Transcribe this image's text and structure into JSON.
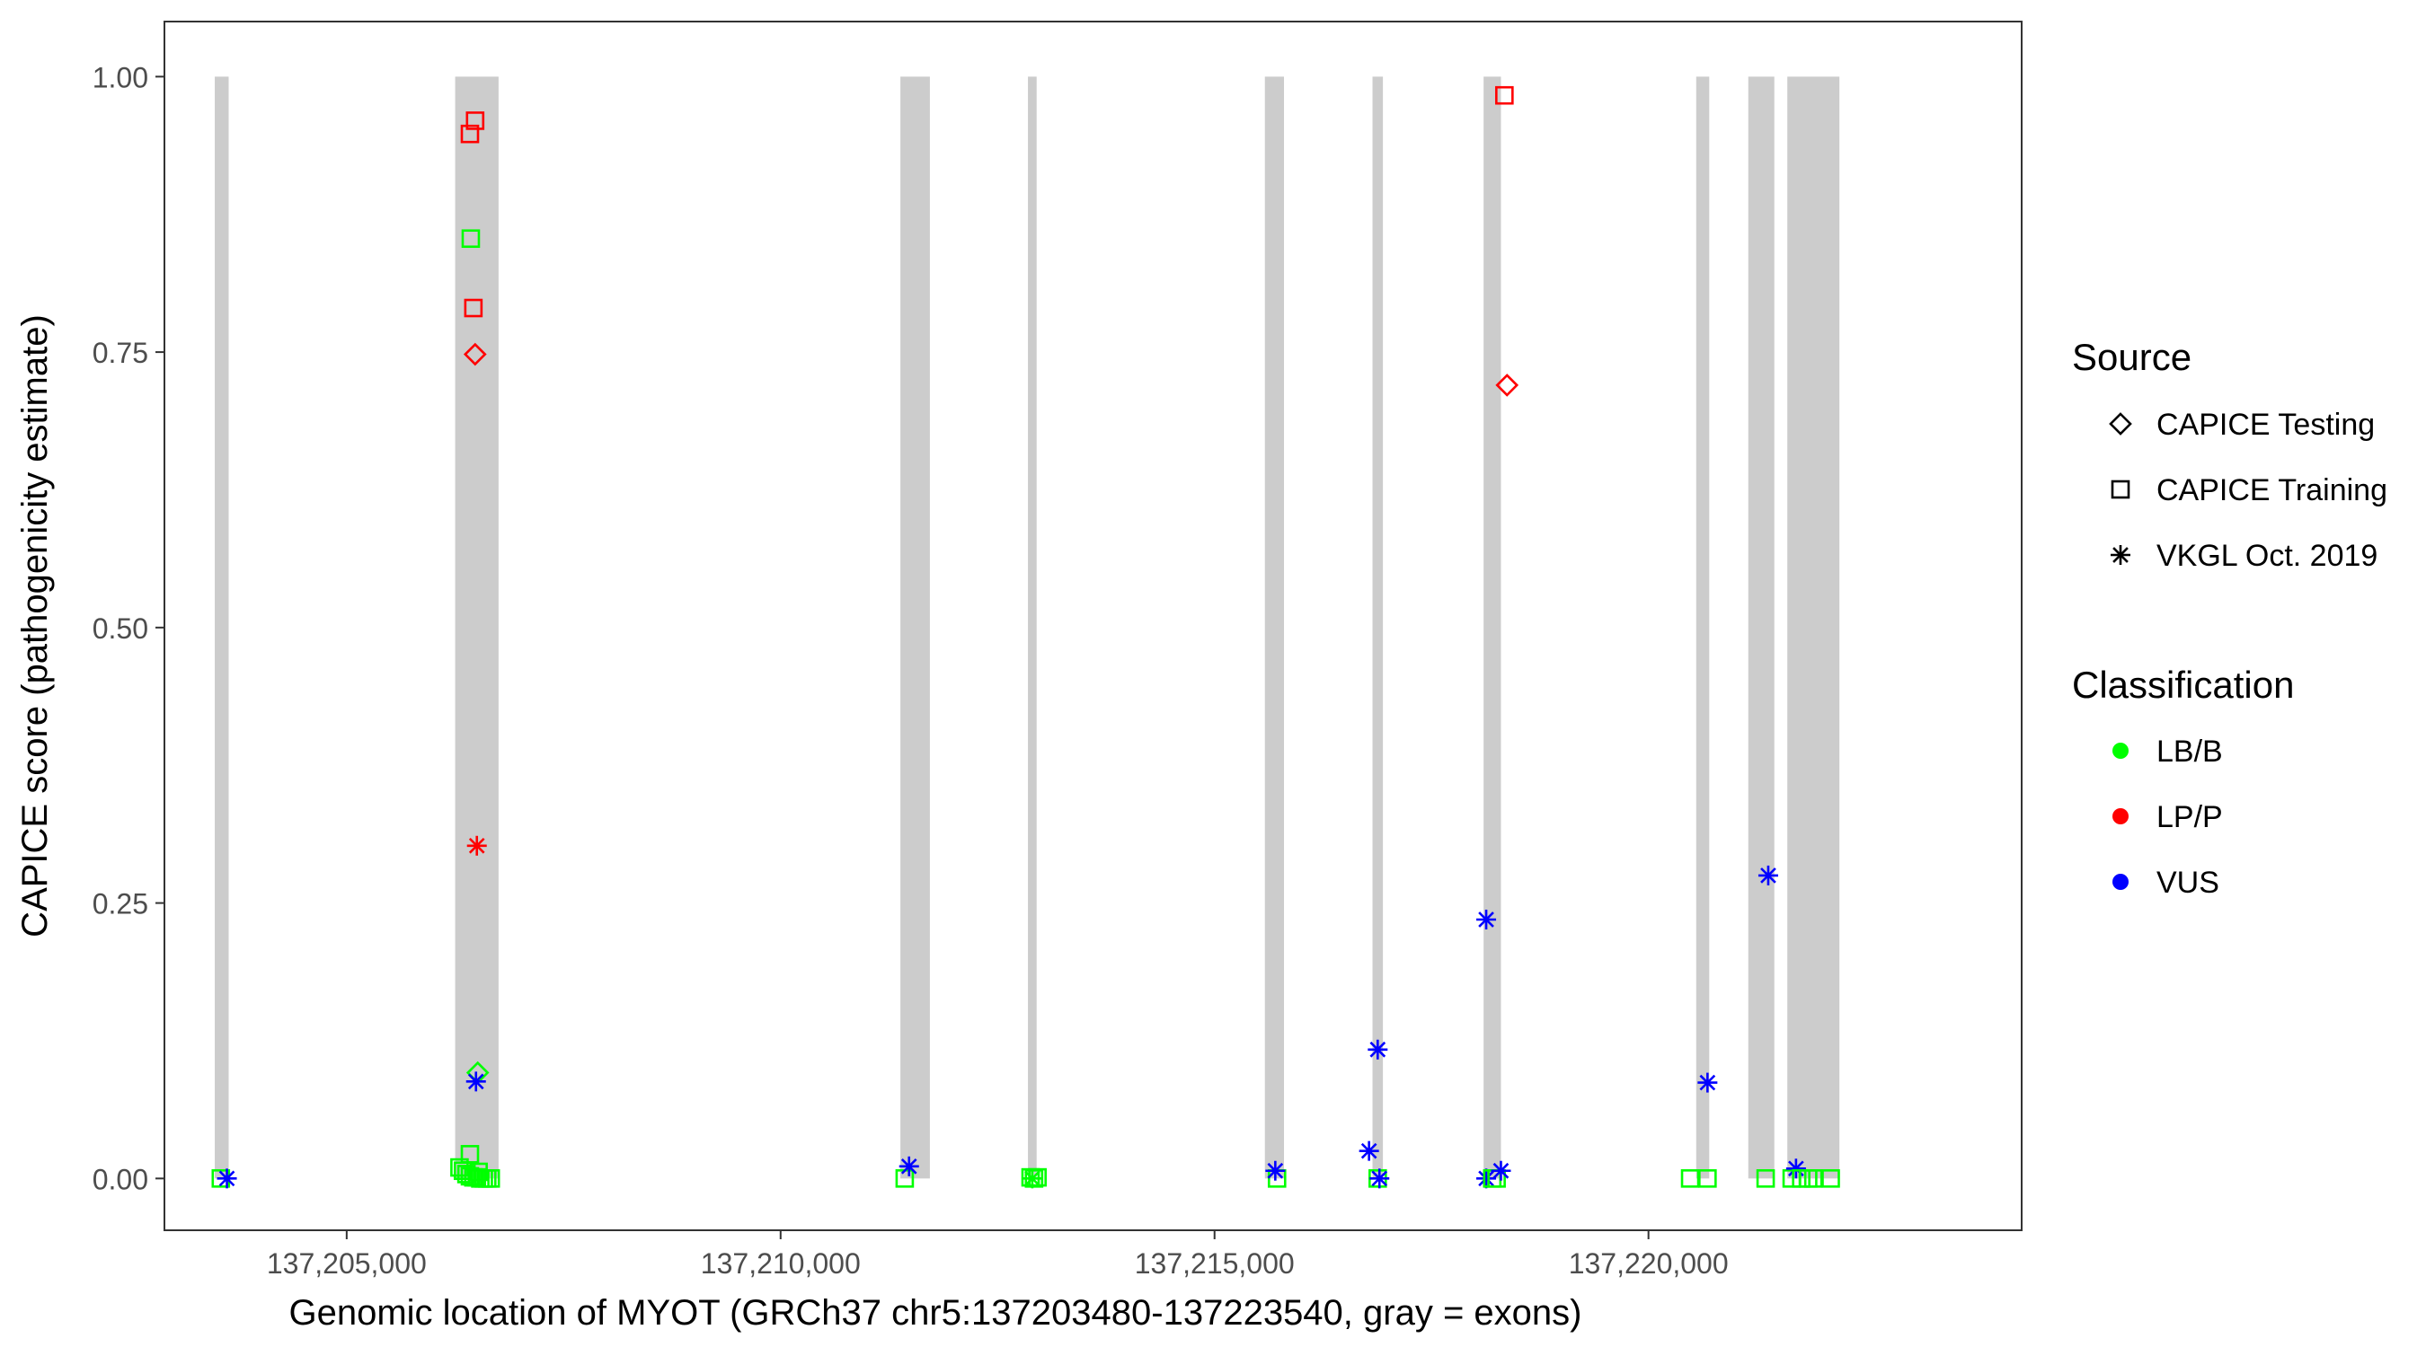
{
  "chart_data": {
    "type": "scatter",
    "title": "",
    "xlabel": "Genomic location of MYOT (GRCh37 chr5:137203480-137223540, gray = exons)",
    "ylabel": "CAPICE score (pathogenicity estimate)",
    "xlim": [
      137202900,
      137224300
    ],
    "ylim": [
      -0.047,
      1.05
    ],
    "x_ticks": [
      137205000,
      137210000,
      137215000,
      137220000
    ],
    "x_tick_labels": [
      "137,205,000",
      "137,210,000",
      "137,215,000",
      "137,220,000"
    ],
    "y_ticks": [
      0,
      0.25,
      0.5,
      0.75,
      1
    ],
    "y_tick_labels": [
      "0.00",
      "0.25",
      "0.50",
      "0.75",
      "1.00"
    ],
    "grid": false,
    "legend_position": "right",
    "exons": [
      [
        137203480,
        137203640
      ],
      [
        137206250,
        137206750
      ],
      [
        137211380,
        137211720
      ],
      [
        137212850,
        137212950
      ],
      [
        137215580,
        137215800
      ],
      [
        137216820,
        137216940
      ],
      [
        137218100,
        137218300
      ],
      [
        137220550,
        137220700
      ],
      [
        137221150,
        137221450
      ],
      [
        137221600,
        137222200
      ]
    ],
    "legend_source": {
      "title": "Source",
      "entries": [
        {
          "label": "CAPICE Testing",
          "shape": "diamond"
        },
        {
          "label": "CAPICE Training",
          "shape": "square"
        },
        {
          "label": "VKGL Oct. 2019",
          "shape": "asterisk"
        }
      ]
    },
    "legend_classification": {
      "title": "Classification",
      "entries": [
        {
          "label": "LB/B",
          "color": "#00ff00"
        },
        {
          "label": "LP/P",
          "color": "#ff0000"
        },
        {
          "label": "VUS",
          "color": "#0000ff"
        }
      ]
    },
    "colors": {
      "LB/B": "#00ff00",
      "LP/P": "#ff0000",
      "VUS": "#0000ff",
      "exon": "#cccccc"
    },
    "points": [
      {
        "x": 137203550,
        "y": 0.0,
        "source": "square",
        "class": "LB/B"
      },
      {
        "x": 137203620,
        "y": 0.0,
        "source": "asterisk",
        "class": "VUS"
      },
      {
        "x": 137206420,
        "y": 0.948,
        "source": "square",
        "class": "LP/P"
      },
      {
        "x": 137206480,
        "y": 0.96,
        "source": "square",
        "class": "LP/P"
      },
      {
        "x": 137206460,
        "y": 0.79,
        "source": "square",
        "class": "LP/P"
      },
      {
        "x": 137206480,
        "y": 0.748,
        "source": "diamond",
        "class": "LP/P"
      },
      {
        "x": 137206500,
        "y": 0.302,
        "source": "asterisk",
        "class": "LP/P"
      },
      {
        "x": 137206430,
        "y": 0.853,
        "source": "square",
        "class": "LB/B"
      },
      {
        "x": 137206510,
        "y": 0.096,
        "source": "diamond",
        "class": "LB/B"
      },
      {
        "x": 137206490,
        "y": 0.088,
        "source": "asterisk",
        "class": "VUS"
      },
      {
        "x": 137206420,
        "y": 0.022,
        "source": "square",
        "class": "LB/B"
      },
      {
        "x": 137206300,
        "y": 0.01,
        "source": "square",
        "class": "LB/B"
      },
      {
        "x": 137206340,
        "y": 0.007,
        "source": "square",
        "class": "LB/B"
      },
      {
        "x": 137206380,
        "y": 0.004,
        "source": "square",
        "class": "LB/B"
      },
      {
        "x": 137206420,
        "y": 0.002,
        "source": "square",
        "class": "LB/B"
      },
      {
        "x": 137206460,
        "y": 0.001,
        "source": "square",
        "class": "LB/B"
      },
      {
        "x": 137206500,
        "y": 0.001,
        "source": "square",
        "class": "LB/B"
      },
      {
        "x": 137206540,
        "y": 0.0,
        "source": "square",
        "class": "LB/B"
      },
      {
        "x": 137206580,
        "y": 0.0,
        "source": "square",
        "class": "LB/B"
      },
      {
        "x": 137206620,
        "y": 0.0,
        "source": "square",
        "class": "LB/B"
      },
      {
        "x": 137206660,
        "y": 0.0,
        "source": "square",
        "class": "LB/B"
      },
      {
        "x": 137206520,
        "y": 0.006,
        "source": "square",
        "class": "LB/B"
      },
      {
        "x": 137211430,
        "y": 0.0,
        "source": "square",
        "class": "LB/B"
      },
      {
        "x": 137211480,
        "y": 0.011,
        "source": "asterisk",
        "class": "VUS"
      },
      {
        "x": 137212880,
        "y": 0.001,
        "source": "square",
        "class": "LB/B"
      },
      {
        "x": 137212920,
        "y": 0.0,
        "source": "square",
        "class": "LB/B"
      },
      {
        "x": 137212960,
        "y": 0.001,
        "source": "square",
        "class": "LB/B"
      },
      {
        "x": 137212900,
        "y": 0.0,
        "source": "asterisk",
        "class": "LB/B"
      },
      {
        "x": 137215720,
        "y": 0.0,
        "source": "square",
        "class": "LB/B"
      },
      {
        "x": 137215700,
        "y": 0.007,
        "source": "asterisk",
        "class": "VUS"
      },
      {
        "x": 137216780,
        "y": 0.025,
        "source": "asterisk",
        "class": "VUS"
      },
      {
        "x": 137216880,
        "y": 0.117,
        "source": "asterisk",
        "class": "VUS"
      },
      {
        "x": 137216880,
        "y": 0.0,
        "source": "square",
        "class": "LB/B"
      },
      {
        "x": 137216900,
        "y": 0.0,
        "source": "asterisk",
        "class": "VUS"
      },
      {
        "x": 137218130,
        "y": 0.235,
        "source": "asterisk",
        "class": "VUS"
      },
      {
        "x": 137218130,
        "y": 0.0,
        "source": "asterisk",
        "class": "VUS"
      },
      {
        "x": 137218200,
        "y": 0.0,
        "source": "square",
        "class": "LB/B"
      },
      {
        "x": 137218250,
        "y": 0.0,
        "source": "square",
        "class": "LB/B"
      },
      {
        "x": 137218300,
        "y": 0.007,
        "source": "asterisk",
        "class": "VUS"
      },
      {
        "x": 137218340,
        "y": 0.983,
        "source": "square",
        "class": "LP/P"
      },
      {
        "x": 137218370,
        "y": 0.72,
        "source": "diamond",
        "class": "LP/P"
      },
      {
        "x": 137220480,
        "y": 0.0,
        "source": "square",
        "class": "LB/B"
      },
      {
        "x": 137220680,
        "y": 0.0,
        "source": "square",
        "class": "LB/B"
      },
      {
        "x": 137220680,
        "y": 0.087,
        "source": "asterisk",
        "class": "VUS"
      },
      {
        "x": 137221380,
        "y": 0.275,
        "source": "asterisk",
        "class": "VUS"
      },
      {
        "x": 137221350,
        "y": 0.0,
        "source": "square",
        "class": "LB/B"
      },
      {
        "x": 137221650,
        "y": 0.0,
        "source": "square",
        "class": "LB/B"
      },
      {
        "x": 137221700,
        "y": 0.009,
        "source": "asterisk",
        "class": "VUS"
      },
      {
        "x": 137221760,
        "y": 0.0,
        "source": "square",
        "class": "LB/B"
      },
      {
        "x": 137221840,
        "y": 0.0,
        "source": "square",
        "class": "LB/B"
      },
      {
        "x": 137221900,
        "y": 0.0,
        "source": "square",
        "class": "LB/B"
      },
      {
        "x": 137222100,
        "y": 0.0,
        "source": "square",
        "class": "LB/B"
      }
    ]
  }
}
